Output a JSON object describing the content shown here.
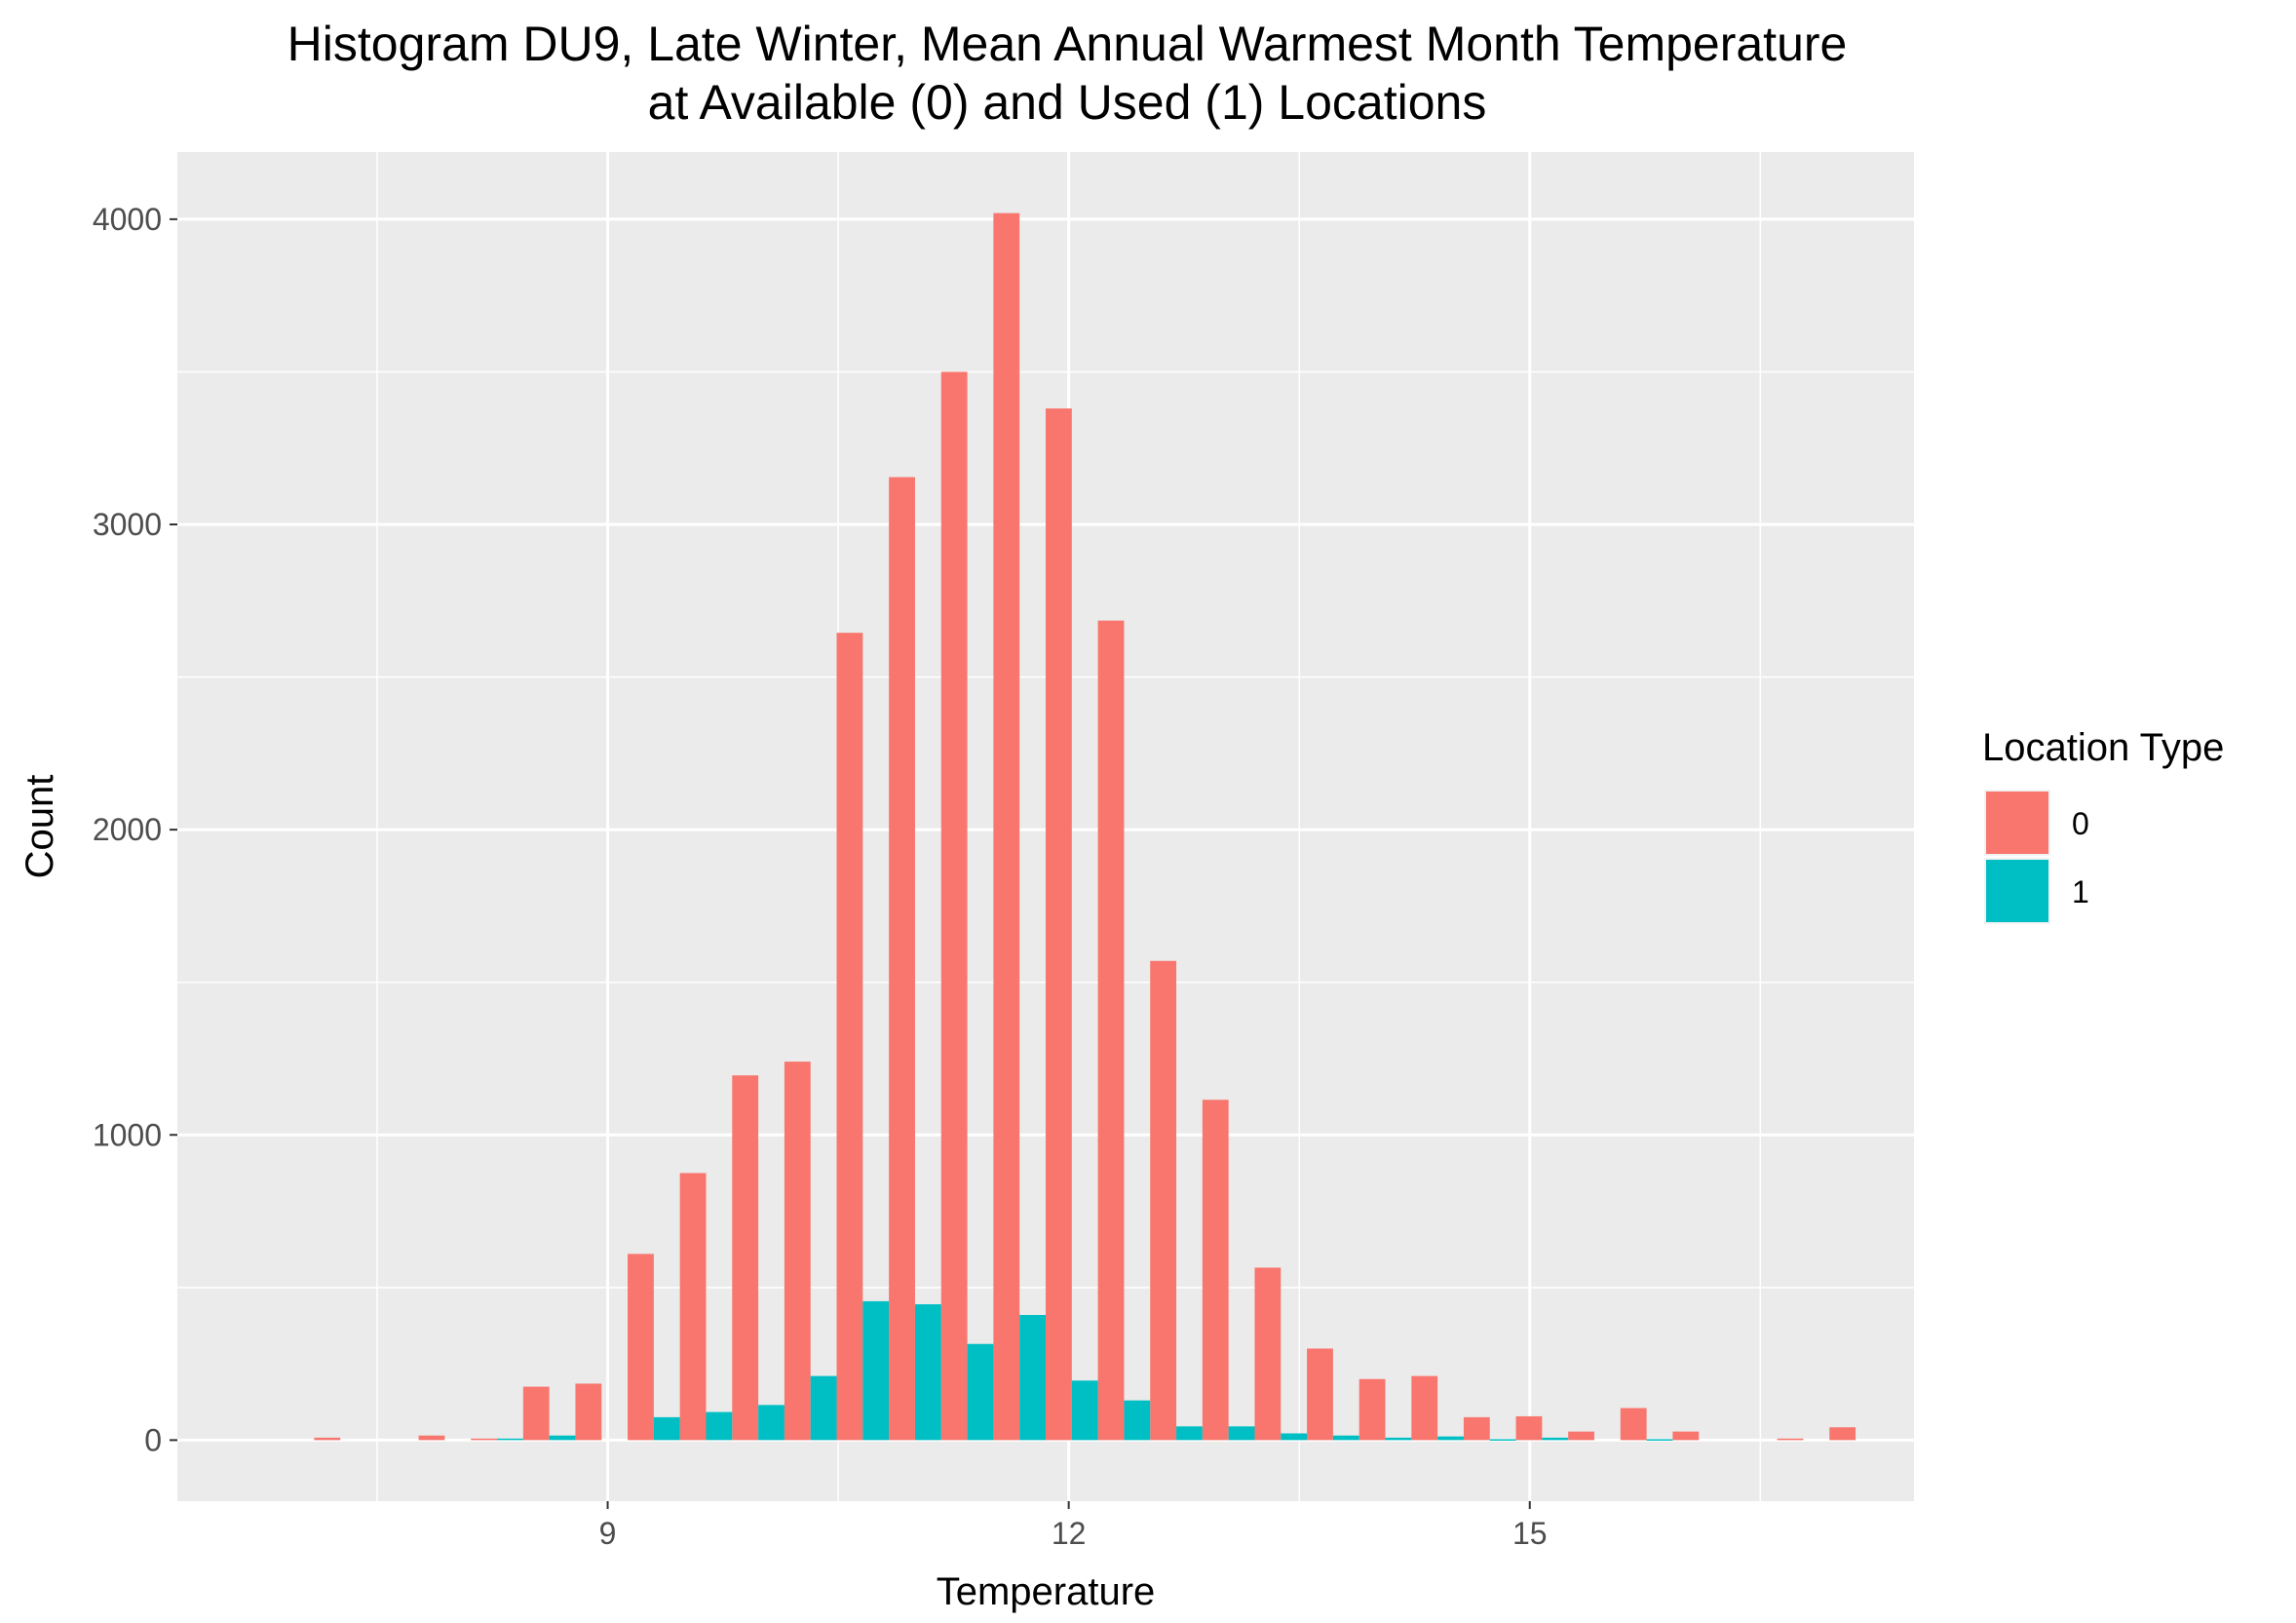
{
  "chart_data": {
    "type": "bar",
    "title": "Histogram DU9, Late Winter, Mean Annual Warmest Month Temperature",
    "subtitle": "at Available (0) and Used (1) Locations",
    "xlabel": "Temperature",
    "ylabel": "Count",
    "xlim": [
      6.2,
      17.5
    ],
    "ylim": [
      -200,
      4220
    ],
    "x_ticks": [
      9,
      12,
      15
    ],
    "x_minor_ticks": [
      7.5,
      10.5,
      13.5,
      16.5
    ],
    "y_ticks": [
      0,
      1000,
      2000,
      3000,
      4000
    ],
    "y_minor_ticks": [
      500,
      1500,
      2500,
      3500
    ],
    "grid": true,
    "legend": {
      "title": "Location Type",
      "position": "right"
    },
    "bins_center": [
      7.26,
      7.6,
      7.94,
      8.28,
      8.62,
      8.96,
      9.3,
      9.64,
      9.98,
      10.32,
      10.66,
      11.0,
      11.34,
      11.68,
      12.02,
      12.36,
      12.7,
      13.04,
      13.38,
      13.72,
      14.06,
      14.4,
      14.74,
      15.08,
      15.42,
      15.76,
      16.1,
      16.44,
      16.78,
      17.12
    ],
    "bar_width": 0.17,
    "series": [
      {
        "name": "0",
        "color": "#F8766D",
        "offset": -0.085,
        "values": [
          8,
          0,
          15,
          5,
          175,
          185,
          610,
          875,
          1195,
          1240,
          2645,
          3155,
          3500,
          4020,
          3380,
          2685,
          1570,
          1115,
          565,
          300,
          200,
          210,
          75,
          78,
          28,
          105,
          28,
          0,
          5,
          42
        ]
      },
      {
        "name": "1",
        "color": "#00BFC4",
        "offset": 0.085,
        "values": [
          0,
          0,
          0,
          5,
          15,
          0,
          75,
          92,
          115,
          210,
          455,
          445,
          315,
          410,
          195,
          130,
          45,
          45,
          22,
          15,
          8,
          12,
          3,
          8,
          0,
          3,
          0,
          0,
          0,
          0
        ]
      }
    ]
  }
}
